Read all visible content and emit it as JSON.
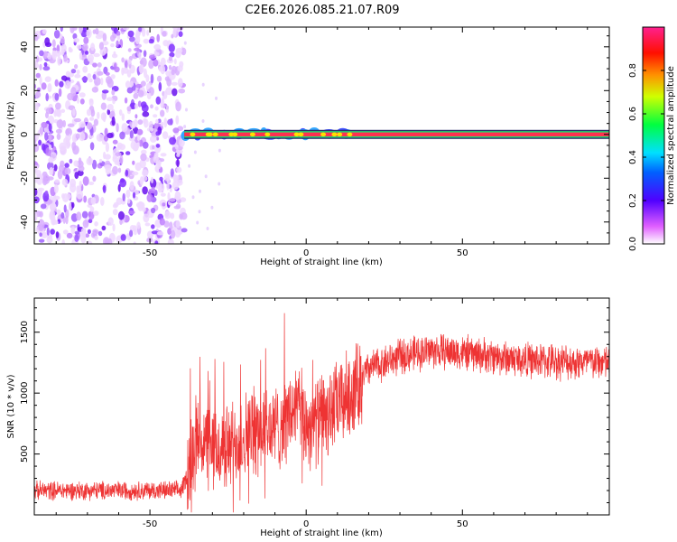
{
  "title": "C2E6.2026.085.21.07.R09",
  "chart_data": [
    {
      "type": "heatmap",
      "xlabel": "Height of straight line (km)",
      "ylabel": "Frequency (Hz)",
      "xlim": [
        -87,
        97
      ],
      "ylim": [
        -50,
        49
      ],
      "xticks": [
        -50,
        0,
        50
      ],
      "yticks": [
        -40,
        -20,
        0,
        20,
        40
      ],
      "noise_region_x": [
        -87,
        -39
      ],
      "signal_line_y": 0,
      "signal_start_x": -39,
      "colorbar": {
        "label": "Normalized spectral amplitude",
        "range": [
          0,
          1
        ],
        "ticks": [
          "0.0",
          "0.2",
          "0.4",
          "0.6",
          "0.8"
        ]
      }
    },
    {
      "type": "line",
      "xlabel": "Height of straight line (km)",
      "ylabel": "SNR (10 * v/v)",
      "xlim": [
        -87,
        97
      ],
      "ylim": [
        0,
        1780
      ],
      "xticks": [
        -50,
        0,
        50
      ],
      "yticks": [
        500,
        1000,
        1500
      ],
      "series": [
        {
          "name": "SNR",
          "color": "#ee3333",
          "envelope_x": [
            -87,
            -60,
            -40,
            -38,
            -35,
            -30,
            -25,
            -20,
            -15,
            -10,
            -5,
            -3,
            0,
            5,
            10,
            15,
            20,
            30,
            40,
            50,
            60,
            70,
            80,
            97
          ],
          "envelope_y": [
            200,
            200,
            200,
            330,
            650,
            520,
            550,
            650,
            720,
            700,
            820,
            900,
            730,
            800,
            900,
            1020,
            1200,
            1300,
            1350,
            1330,
            1300,
            1270,
            1260,
            1250
          ]
        }
      ]
    }
  ]
}
